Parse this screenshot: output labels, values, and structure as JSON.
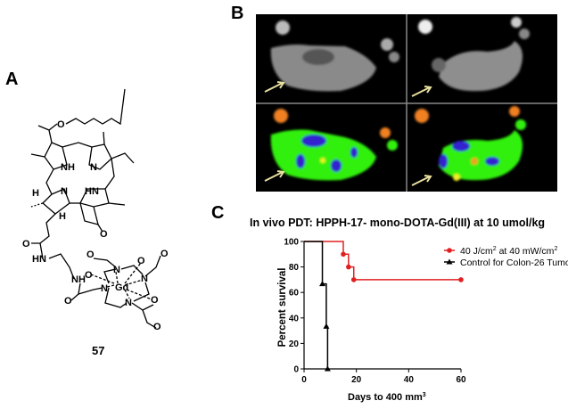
{
  "panels": {
    "a": "A",
    "b": "B",
    "c": "C"
  },
  "compound": {
    "number": "57",
    "atom_labels": [
      "O",
      "NH",
      "N",
      "N",
      "HN",
      "H",
      "H",
      "O",
      "O",
      "HN",
      "NH",
      "O",
      "O",
      "O",
      "N",
      "N",
      "Gd",
      "N",
      "N",
      "O",
      "O",
      "O",
      "O",
      "O"
    ]
  },
  "mri": {
    "colors": {
      "tumor_arrow": "#e8e0a0",
      "map_high": "#f08020",
      "map_mid": "#30f010",
      "map_low": "#3020d0"
    }
  },
  "chart_data": {
    "type": "line",
    "step": true,
    "title": "In vivo PDT: HPPH-17- mono-DOTA-Gd(III) at 10 umol/kg",
    "xlabel": "Days to 400 mm",
    "xlabel_sup": "3",
    "ylabel": "Percent survival",
    "xlim": [
      0,
      60
    ],
    "ylim": [
      0,
      100
    ],
    "xticks": [
      0,
      20,
      40,
      60
    ],
    "yticks": [
      0,
      20,
      40,
      60,
      80,
      100
    ],
    "grid": false,
    "legend_position": "top-right",
    "series": [
      {
        "name": "40 J/cm2 at 40 mW/cm2",
        "name_parts": [
          "40 J/cm",
          "2",
          " at 40 mW/cm",
          "2"
        ],
        "color": "#e02020",
        "marker": "circle",
        "x": [
          0,
          15,
          17,
          19,
          60
        ],
        "y": [
          100,
          90,
          80,
          70,
          70
        ]
      },
      {
        "name": "Control for Colon-26 Tumor",
        "color": "#000000",
        "marker": "triangle",
        "x": [
          0,
          7,
          8.5,
          9
        ],
        "y": [
          100,
          66.7,
          33.3,
          0
        ]
      }
    ]
  }
}
